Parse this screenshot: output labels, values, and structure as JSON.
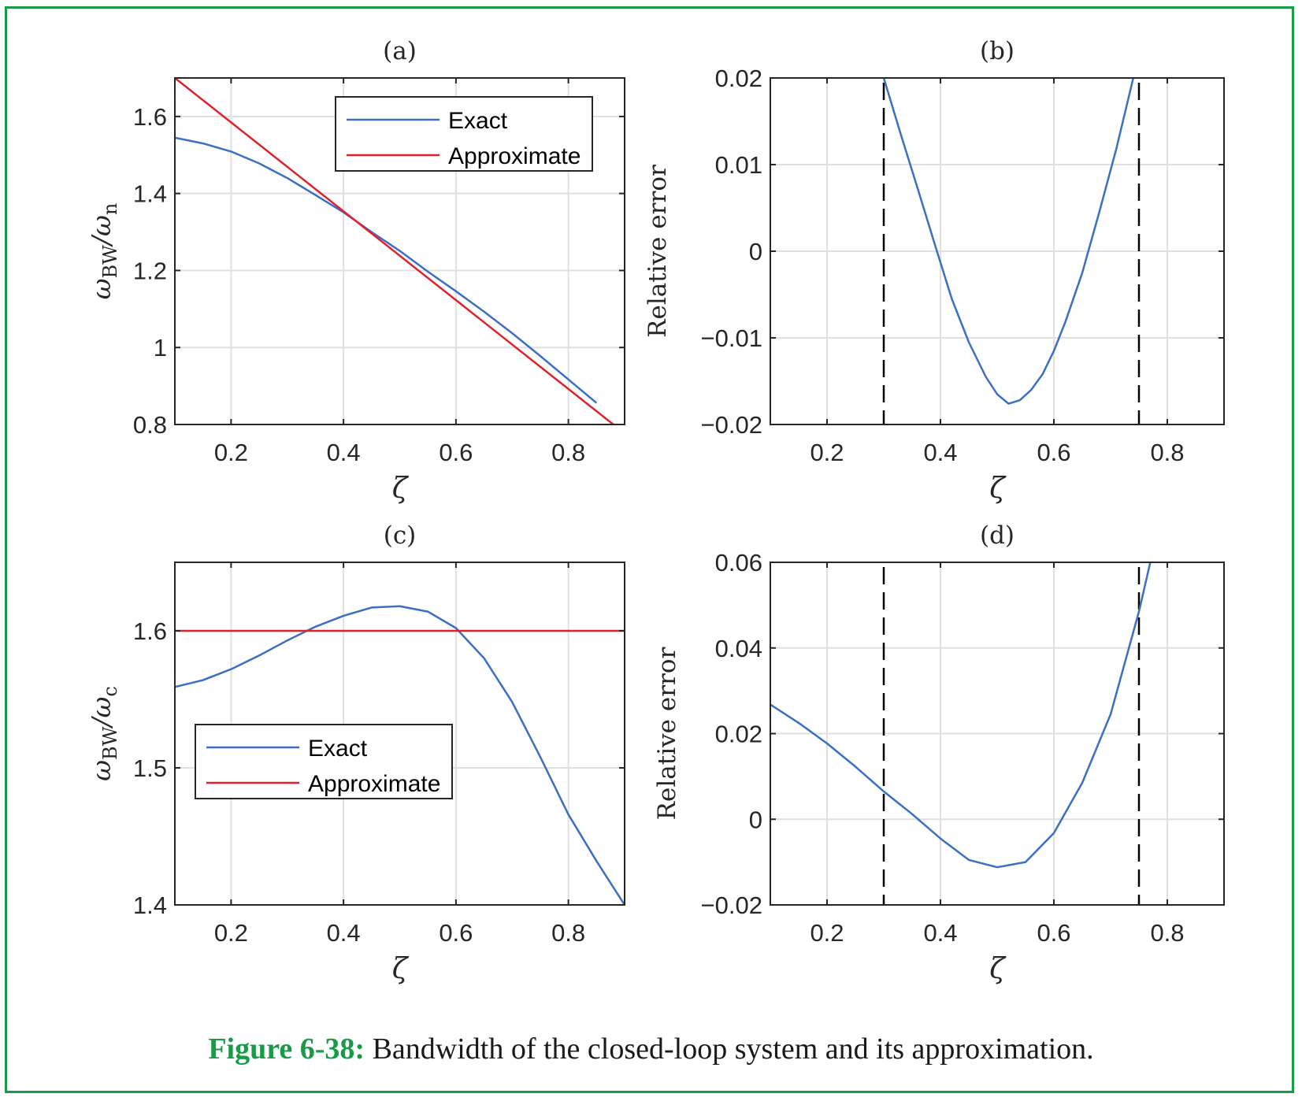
{
  "caption": {
    "number": "Figure 6-38:",
    "text": " Bandwidth of the closed-loop system and its approximation."
  },
  "colors": {
    "frame": "#1a9a48",
    "exact": "#3a6fc4",
    "approximate": "#e0202a",
    "dashed": "#000000",
    "grid": "#e0e0e0"
  },
  "chart_data": [
    {
      "id": "a",
      "type": "line",
      "title": "(a)",
      "xlabel": "ζ",
      "ylabel": {
        "main": "ω",
        "sub1": "BW",
        "mid": "/ω",
        "sub2": "n"
      },
      "xlim": [
        0.1,
        0.9
      ],
      "ylim": [
        0.8,
        1.7
      ],
      "xticks": [
        0.2,
        0.4,
        0.6,
        0.8
      ],
      "xtick_labels": [
        "0.2",
        "0.4",
        "0.6",
        "0.8"
      ],
      "yticks": [
        0.8,
        1.0,
        1.2,
        1.4,
        1.6
      ],
      "ytick_labels": [
        "0.8",
        "1",
        "1.2",
        "1.4",
        "1.6"
      ],
      "grid": true,
      "legend": {
        "placement": "top-right",
        "entries": [
          "Exact",
          "Approximate"
        ]
      },
      "series": [
        {
          "name": "Exact",
          "color": "#3a6fc4",
          "x": [
            0.1,
            0.15,
            0.2,
            0.25,
            0.3,
            0.35,
            0.4,
            0.45,
            0.5,
            0.55,
            0.6,
            0.65,
            0.7,
            0.75,
            0.8,
            0.85
          ],
          "y": [
            1.545,
            1.53,
            1.509,
            1.478,
            1.44,
            1.396,
            1.351,
            1.3,
            1.251,
            1.197,
            1.146,
            1.093,
            1.037,
            0.978,
            0.917,
            0.856
          ]
        },
        {
          "name": "Approximate",
          "color": "#e0202a",
          "x": [
            0.1,
            0.88
          ],
          "y": [
            1.7,
            0.8
          ]
        }
      ]
    },
    {
      "id": "b",
      "type": "line",
      "title": "(b)",
      "xlabel": "ζ",
      "ylabel": "Relative error",
      "xlim": [
        0.1,
        0.9
      ],
      "ylim": [
        -0.02,
        0.02
      ],
      "xticks": [
        0.2,
        0.4,
        0.6,
        0.8
      ],
      "xtick_labels": [
        "0.2",
        "0.4",
        "0.6",
        "0.8"
      ],
      "yticks": [
        -0.02,
        -0.01,
        0,
        0.01,
        0.02
      ],
      "ytick_labels": [
        "−0.02",
        "−0.01",
        "0",
        "0.01",
        "0.02"
      ],
      "grid": true,
      "vlines": [
        0.3,
        0.75
      ],
      "series": [
        {
          "name": "",
          "color": "#3a6fc4",
          "x": [
            0.3,
            0.33,
            0.36,
            0.39,
            0.42,
            0.45,
            0.48,
            0.5,
            0.52,
            0.54,
            0.56,
            0.58,
            0.6,
            0.62,
            0.65,
            0.68,
            0.71,
            0.74
          ],
          "y": [
            0.02,
            0.0135,
            0.0072,
            0.0008,
            -0.0055,
            -0.0105,
            -0.0145,
            -0.0165,
            -0.0176,
            -0.0172,
            -0.016,
            -0.0142,
            -0.0115,
            -0.0082,
            -0.0025,
            0.0045,
            0.0118,
            0.02
          ]
        }
      ]
    },
    {
      "id": "c",
      "type": "line",
      "title": "(c)",
      "xlabel": "ζ",
      "ylabel": {
        "main": "ω",
        "sub1": "BW",
        "mid": "/ω",
        "sub2": "c"
      },
      "xlim": [
        0.1,
        0.9
      ],
      "ylim": [
        1.4,
        1.65
      ],
      "xticks": [
        0.2,
        0.4,
        0.6,
        0.8
      ],
      "xtick_labels": [
        "0.2",
        "0.4",
        "0.6",
        "0.8"
      ],
      "yticks": [
        1.4,
        1.5,
        1.6
      ],
      "ytick_labels": [
        "1.4",
        "1.5",
        "1.6"
      ],
      "grid": true,
      "legend": {
        "placement": "bottom-left",
        "entries": [
          "Exact",
          "Approximate"
        ]
      },
      "series": [
        {
          "name": "Exact",
          "color": "#3a6fc4",
          "x": [
            0.1,
            0.15,
            0.2,
            0.25,
            0.3,
            0.35,
            0.4,
            0.45,
            0.5,
            0.55,
            0.6,
            0.65,
            0.7,
            0.75,
            0.8,
            0.85,
            0.9
          ],
          "y": [
            1.559,
            1.564,
            1.572,
            1.582,
            1.593,
            1.603,
            1.611,
            1.617,
            1.618,
            1.614,
            1.602,
            1.58,
            1.548,
            1.508,
            1.466,
            1.432,
            1.4
          ]
        },
        {
          "name": "Approximate",
          "color": "#e0202a",
          "x": [
            0.1,
            0.9
          ],
          "y": [
            1.6,
            1.6
          ]
        }
      ]
    },
    {
      "id": "d",
      "type": "line",
      "title": "(d)",
      "xlabel": "ζ",
      "ylabel": "Relative error",
      "xlim": [
        0.1,
        0.9
      ],
      "ylim": [
        -0.02,
        0.06
      ],
      "xticks": [
        0.2,
        0.4,
        0.6,
        0.8
      ],
      "xtick_labels": [
        "0.2",
        "0.4",
        "0.6",
        "0.8"
      ],
      "yticks": [
        -0.02,
        0,
        0.02,
        0.04,
        0.06
      ],
      "ytick_labels": [
        "−0.02",
        "0",
        "0.02",
        "0.04",
        "0.06"
      ],
      "grid": true,
      "vlines": [
        0.3,
        0.75
      ],
      "series": [
        {
          "name": "",
          "color": "#3a6fc4",
          "x": [
            0.1,
            0.15,
            0.2,
            0.25,
            0.3,
            0.35,
            0.4,
            0.45,
            0.5,
            0.55,
            0.6,
            0.65,
            0.7,
            0.75,
            0.77
          ],
          "y": [
            0.0268,
            0.0225,
            0.0177,
            0.0123,
            0.0065,
            0.0012,
            -0.0045,
            -0.0095,
            -0.0112,
            -0.01,
            -0.0032,
            0.0085,
            0.0245,
            0.0485,
            0.06
          ]
        }
      ]
    }
  ]
}
